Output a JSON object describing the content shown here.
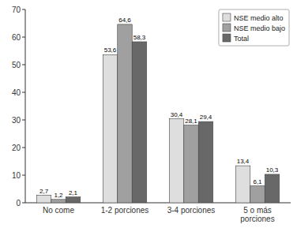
{
  "chart_data": {
    "type": "bar",
    "categories": [
      "No come",
      "1-2 porciones",
      "3-4 porciones",
      "5 o más\nporciones"
    ],
    "series": [
      {
        "name": "NSE medio alto",
        "color": "#dedede",
        "values": [
          2.7,
          53.6,
          30.4,
          13.4
        ],
        "value_labels": [
          "2,7",
          "53,6",
          "30,4",
          "13,4"
        ]
      },
      {
        "name": "NSE medio bajo",
        "color": "#a0a0a0",
        "values": [
          1.2,
          64.6,
          28.1,
          6.1
        ],
        "value_labels": [
          "1,2",
          "64,6",
          "28,1",
          "6,1"
        ]
      },
      {
        "name": "Total",
        "color": "#686868",
        "values": [
          2.1,
          58.3,
          29.4,
          10.3
        ],
        "value_labels": [
          "2,1",
          "58,3",
          "29,4",
          "10,3"
        ]
      }
    ],
    "ylim": [
      0,
      70
    ],
    "yticks": [
      0,
      10,
      20,
      30,
      40,
      50,
      60,
      70
    ],
    "grid": false,
    "legend": "upper right",
    "data_labels": true
  }
}
